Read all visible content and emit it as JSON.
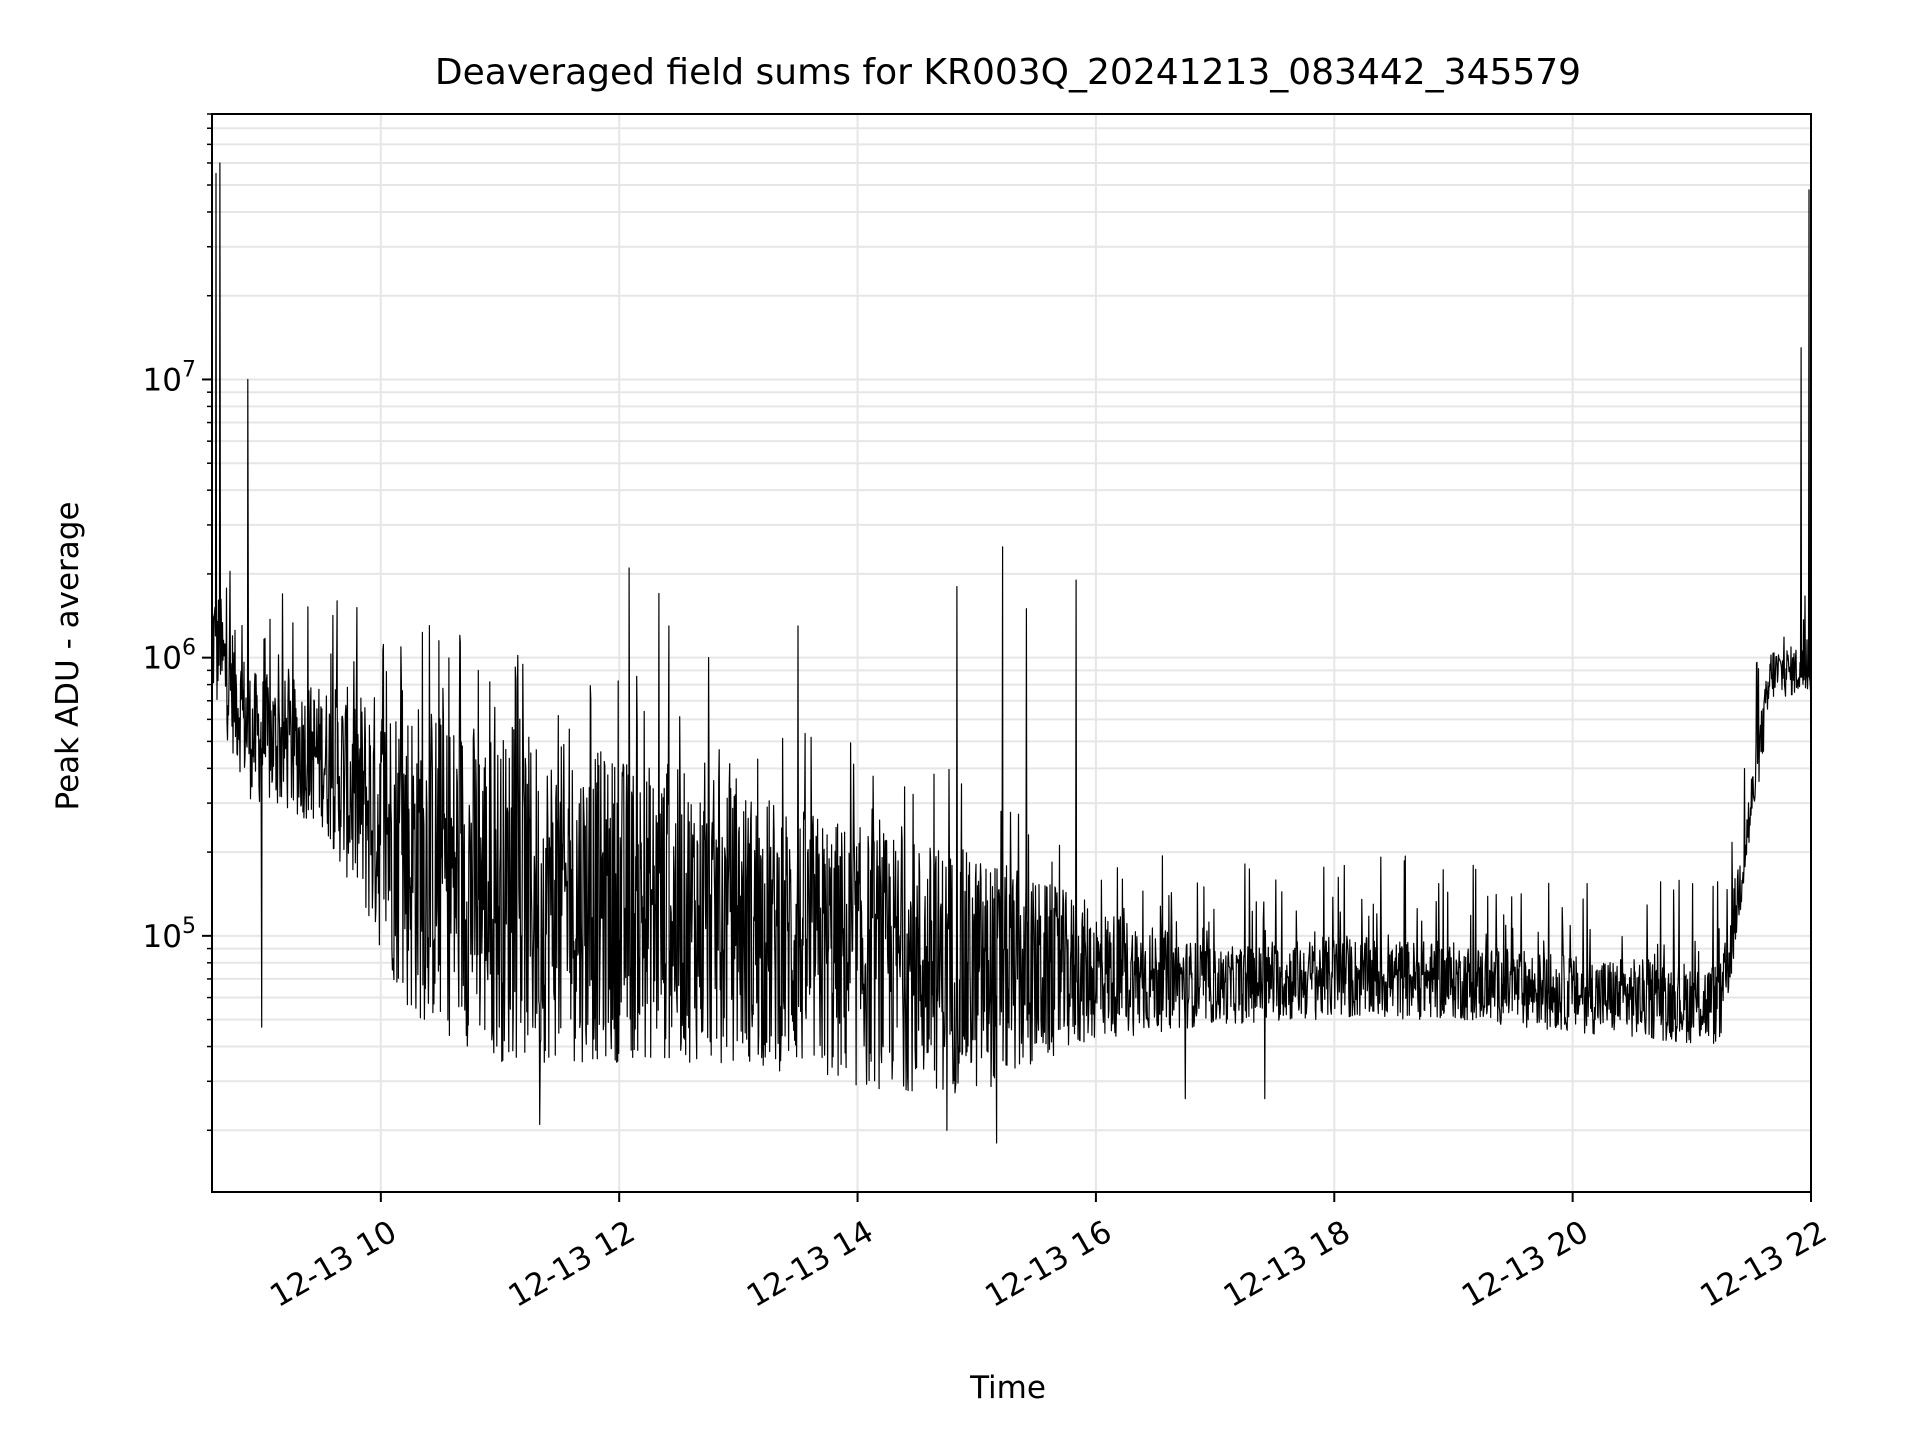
{
  "chart_data": {
    "type": "line",
    "title": "Deaveraged field sums for KR003Q_20241213_083442_345579",
    "xlabel": "Time",
    "ylabel": "Peak ADU - average",
    "yscale": "log",
    "xlim": [
      "2024-12-13 08:35",
      "2024-12-13 22:00"
    ],
    "ylim": [
      12000,
      90000000
    ],
    "grid": true,
    "line_color": "#000000",
    "grid_color": "#e6e6e6",
    "x_ticks": [
      {
        "t": "2024-12-13 10:00",
        "label": "12-13 10"
      },
      {
        "t": "2024-12-13 12:00",
        "label": "12-13 12"
      },
      {
        "t": "2024-12-13 14:00",
        "label": "12-13 14"
      },
      {
        "t": "2024-12-13 16:00",
        "label": "12-13 16"
      },
      {
        "t": "2024-12-13 18:00",
        "label": "12-13 18"
      },
      {
        "t": "2024-12-13 20:00",
        "label": "12-13 20"
      },
      {
        "t": "2024-12-13 22:00",
        "label": "12-13 22"
      }
    ],
    "y_ticks": [
      {
        "value": 100000,
        "mantissa": "10",
        "exponent": "5"
      },
      {
        "value": 1000000,
        "mantissa": "10",
        "exponent": "6"
      },
      {
        "value": 10000000,
        "mantissa": "10",
        "exponent": "7"
      }
    ],
    "series": [
      {
        "baseline": [
          {
            "t": "2024-12-13 08:35",
            "low": 700000,
            "high": 2000000
          },
          {
            "t": "2024-12-13 08:55",
            "low": 300000,
            "high": 900000
          },
          {
            "t": "2024-12-13 09:30",
            "low": 250000,
            "high": 800000
          },
          {
            "t": "2024-12-13 10:15",
            "low": 50000,
            "high": 750000
          },
          {
            "t": "2024-12-13 11:00",
            "low": 35000,
            "high": 550000
          },
          {
            "t": "2024-12-13 12:00",
            "low": 35000,
            "high": 450000
          },
          {
            "t": "2024-12-13 13:00",
            "low": 35000,
            "high": 350000
          },
          {
            "t": "2024-12-13 14:00",
            "low": 28000,
            "high": 250000
          },
          {
            "t": "2024-12-13 15:00",
            "low": 27000,
            "high": 200000
          },
          {
            "t": "2024-12-13 16:00",
            "low": 42000,
            "high": 130000
          },
          {
            "t": "2024-12-13 17:00",
            "low": 48000,
            "high": 90000
          },
          {
            "t": "2024-12-13 18:00",
            "low": 50000,
            "high": 100000
          },
          {
            "t": "2024-12-13 19:00",
            "low": 50000,
            "high": 95000
          },
          {
            "t": "2024-12-13 20:00",
            "low": 45000,
            "high": 85000
          },
          {
            "t": "2024-12-13 21:15",
            "low": 40000,
            "high": 80000
          },
          {
            "t": "2024-12-13 21:40",
            "low": 700000,
            "high": 1100000
          },
          {
            "t": "2024-12-13 22:00",
            "low": 750000,
            "high": 1100000
          }
        ],
        "spikes": [
          {
            "t": "2024-12-13 08:37",
            "value": 55000000
          },
          {
            "t": "2024-12-13 08:39",
            "value": 60000000
          },
          {
            "t": "2024-12-13 08:53",
            "value": 10000000
          },
          {
            "t": "2024-12-13 09:38",
            "value": 1600000
          },
          {
            "t": "2024-12-13 12:05",
            "value": 2100000
          },
          {
            "t": "2024-12-13 12:20",
            "value": 1700000
          },
          {
            "t": "2024-12-13 12:25",
            "value": 1300000
          },
          {
            "t": "2024-12-13 12:45",
            "value": 1000000
          },
          {
            "t": "2024-12-13 13:30",
            "value": 1300000
          },
          {
            "t": "2024-12-13 14:50",
            "value": 1800000
          },
          {
            "t": "2024-12-13 15:13",
            "value": 2500000
          },
          {
            "t": "2024-12-13 15:25",
            "value": 1500000
          },
          {
            "t": "2024-12-13 15:50",
            "value": 1900000
          },
          {
            "t": "2024-12-13 21:55",
            "value": 13000000
          },
          {
            "t": "2024-12-13 21:59",
            "value": 48000000
          }
        ],
        "dips": [
          {
            "t": "2024-12-13 09:00",
            "value": 47000
          },
          {
            "t": "2024-12-13 14:45",
            "value": 20000
          },
          {
            "t": "2024-12-13 15:10",
            "value": 18000
          },
          {
            "t": "2024-12-13 11:20",
            "value": 21000
          },
          {
            "t": "2024-12-13 16:45",
            "value": 26000
          },
          {
            "t": "2024-12-13 17:25",
            "value": 26000
          }
        ]
      }
    ]
  }
}
